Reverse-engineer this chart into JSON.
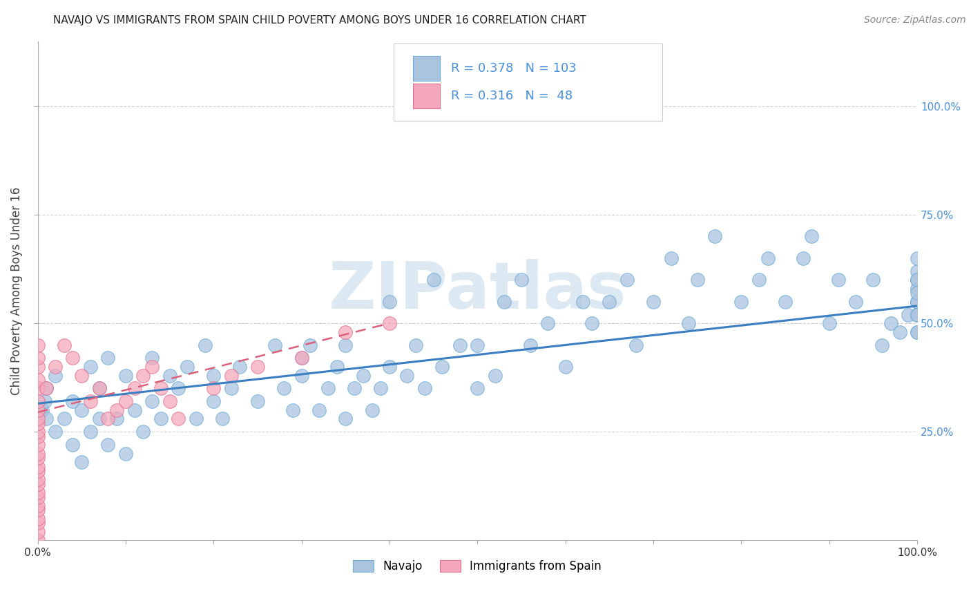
{
  "title": "NAVAJO VS IMMIGRANTS FROM SPAIN CHILD POVERTY AMONG BOYS UNDER 16 CORRELATION CHART",
  "source": "Source: ZipAtlas.com",
  "ylabel": "Child Poverty Among Boys Under 16",
  "navajo_R": 0.378,
  "navajo_N": 103,
  "spain_R": 0.316,
  "spain_N": 48,
  "navajo_color": "#aac4e0",
  "spain_color": "#f5a8bc",
  "navajo_edge_color": "#6aaad4",
  "spain_edge_color": "#e07090",
  "navajo_line_color": "#3a7fc1",
  "spain_line_color": "#d95f7a",
  "right_tick_color": "#4a90d9",
  "background_color": "#ffffff",
  "watermark": "ZIPatlas",
  "watermark_color": "#dce8f2",
  "grid_color": "#d0d0d0",
  "title_color": "#222222",
  "source_color": "#888888",
  "ylabel_color": "#444444",
  "xlim": [
    0,
    1
  ],
  "ylim": [
    0,
    1.15
  ],
  "right_yticks": [
    0.25,
    0.5,
    0.75,
    1.0
  ],
  "right_yticklabels": [
    "25.0%",
    "50.0%",
    "75.0%",
    "100.0%"
  ],
  "xtick_labels_show": [
    "0.0%",
    "100.0%"
  ],
  "navajo_x": [
    0.005,
    0.008,
    0.01,
    0.01,
    0.02,
    0.02,
    0.03,
    0.04,
    0.04,
    0.05,
    0.05,
    0.06,
    0.06,
    0.07,
    0.07,
    0.08,
    0.08,
    0.09,
    0.1,
    0.1,
    0.11,
    0.12,
    0.13,
    0.13,
    0.14,
    0.15,
    0.16,
    0.17,
    0.18,
    0.19,
    0.2,
    0.2,
    0.21,
    0.22,
    0.23,
    0.25,
    0.27,
    0.28,
    0.29,
    0.3,
    0.3,
    0.31,
    0.32,
    0.33,
    0.34,
    0.35,
    0.35,
    0.36,
    0.37,
    0.38,
    0.39,
    0.4,
    0.4,
    0.42,
    0.43,
    0.44,
    0.45,
    0.46,
    0.48,
    0.5,
    0.5,
    0.52,
    0.53,
    0.55,
    0.56,
    0.58,
    0.6,
    0.62,
    0.63,
    0.65,
    0.67,
    0.68,
    0.7,
    0.72,
    0.74,
    0.75,
    0.77,
    0.8,
    0.82,
    0.83,
    0.85,
    0.87,
    0.88,
    0.9,
    0.91,
    0.93,
    0.95,
    0.96,
    0.97,
    0.98,
    0.99,
    1.0,
    1.0,
    1.0,
    1.0,
    1.0,
    1.0,
    1.0,
    1.0,
    1.0,
    1.0,
    1.0,
    1.0
  ],
  "navajo_y": [
    0.3,
    0.32,
    0.28,
    0.35,
    0.25,
    0.38,
    0.28,
    0.22,
    0.32,
    0.18,
    0.3,
    0.25,
    0.4,
    0.28,
    0.35,
    0.22,
    0.42,
    0.28,
    0.2,
    0.38,
    0.3,
    0.25,
    0.42,
    0.32,
    0.28,
    0.38,
    0.35,
    0.4,
    0.28,
    0.45,
    0.32,
    0.38,
    0.28,
    0.35,
    0.4,
    0.32,
    0.45,
    0.35,
    0.3,
    0.42,
    0.38,
    0.45,
    0.3,
    0.35,
    0.4,
    0.28,
    0.45,
    0.35,
    0.38,
    0.3,
    0.35,
    0.4,
    0.55,
    0.38,
    0.45,
    0.35,
    0.6,
    0.4,
    0.45,
    0.35,
    0.45,
    0.38,
    0.55,
    0.6,
    0.45,
    0.5,
    0.4,
    0.55,
    0.5,
    0.55,
    0.6,
    0.45,
    0.55,
    0.65,
    0.5,
    0.6,
    0.7,
    0.55,
    0.6,
    0.65,
    0.55,
    0.65,
    0.7,
    0.5,
    0.6,
    0.55,
    0.6,
    0.45,
    0.5,
    0.48,
    0.52,
    0.48,
    0.52,
    0.58,
    0.62,
    0.55,
    0.6,
    0.48,
    0.55,
    0.6,
    0.65,
    0.52,
    0.57
  ],
  "spain_x": [
    0.0,
    0.0,
    0.0,
    0.0,
    0.0,
    0.0,
    0.0,
    0.0,
    0.0,
    0.0,
    0.0,
    0.0,
    0.0,
    0.0,
    0.0,
    0.0,
    0.0,
    0.0,
    0.0,
    0.0,
    0.0,
    0.0,
    0.0,
    0.0,
    0.0,
    0.0,
    0.01,
    0.02,
    0.03,
    0.04,
    0.05,
    0.06,
    0.07,
    0.08,
    0.09,
    0.1,
    0.11,
    0.12,
    0.13,
    0.14,
    0.15,
    0.16,
    0.2,
    0.22,
    0.25,
    0.3,
    0.35,
    0.4
  ],
  "spain_y": [
    0.0,
    0.02,
    0.04,
    0.05,
    0.07,
    0.08,
    0.1,
    0.11,
    0.13,
    0.14,
    0.16,
    0.17,
    0.19,
    0.2,
    0.22,
    0.24,
    0.25,
    0.27,
    0.28,
    0.3,
    0.32,
    0.35,
    0.37,
    0.4,
    0.42,
    0.45,
    0.35,
    0.4,
    0.45,
    0.42,
    0.38,
    0.32,
    0.35,
    0.28,
    0.3,
    0.32,
    0.35,
    0.38,
    0.4,
    0.35,
    0.32,
    0.28,
    0.35,
    0.38,
    0.4,
    0.42,
    0.48,
    0.5
  ],
  "navajo_line_x0": 0.0,
  "navajo_line_y0": 0.315,
  "navajo_line_x1": 1.0,
  "navajo_line_y1": 0.54,
  "spain_line_x0": 0.0,
  "spain_line_y0": 0.295,
  "spain_line_x1": 0.4,
  "spain_line_y1": 0.5
}
